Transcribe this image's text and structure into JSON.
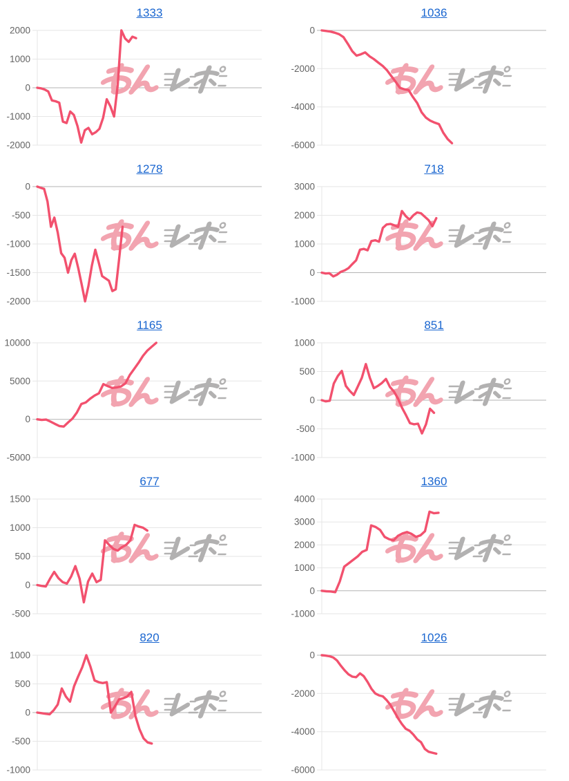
{
  "style": {
    "background": "#ffffff",
    "line_color": "#f2516e",
    "title_color": "#1a66d0",
    "tick_label_color": "#636363",
    "grid_color": "#e6e6e6",
    "zero_line_color": "#b3b3b3",
    "grid": true,
    "legend_position": "none"
  },
  "watermark": {
    "pink_text": "みん",
    "gray_text": "レポ",
    "pink_color": "#f2a4b0",
    "gray_color": "#b2b1b1"
  },
  "chart_data": [
    {
      "type": "line",
      "title": "1333",
      "xlabel": "",
      "ylabel": "",
      "ticks": [
        2000,
        1000,
        0,
        -1000,
        -2000
      ],
      "ylim": [
        -2000,
        2000
      ],
      "x_span": 0.44,
      "values": [
        0,
        -20,
        -60,
        -130,
        -440,
        -470,
        -520,
        -1180,
        -1230,
        -830,
        -950,
        -1340,
        -1910,
        -1480,
        -1400,
        -1620,
        -1550,
        -1430,
        -1050,
        -400,
        -650,
        -1000,
        100,
        2000,
        1720,
        1600,
        1780,
        1730
      ]
    },
    {
      "type": "line",
      "title": "1036",
      "xlabel": "",
      "ylabel": "",
      "ticks": [
        0,
        -2000,
        -4000,
        -6000
      ],
      "ylim": [
        -6000,
        0
      ],
      "x_span": 0.58,
      "values": [
        0,
        -30,
        -60,
        -120,
        -200,
        -350,
        -700,
        -1080,
        -1320,
        -1250,
        -1150,
        -1350,
        -1500,
        -1680,
        -1850,
        -2080,
        -2380,
        -2680,
        -3000,
        -3080,
        -3120,
        -3480,
        -3800,
        -4280,
        -4560,
        -4720,
        -4820,
        -4900,
        -5350,
        -5680,
        -5900
      ]
    },
    {
      "type": "line",
      "title": "1278",
      "xlabel": "",
      "ylabel": "",
      "ticks": [
        0,
        -500,
        -1000,
        -1500,
        -2000
      ],
      "ylim": [
        -2000,
        0
      ],
      "x_span": 0.38,
      "values": [
        0,
        -20,
        -40,
        -260,
        -700,
        -540,
        -800,
        -1160,
        -1240,
        -1500,
        -1280,
        -1170,
        -1420,
        -1700,
        -2000,
        -1730,
        -1380,
        -1100,
        -1320,
        -1560,
        -1600,
        -1640,
        -1820,
        -1790,
        -1250,
        -700
      ]
    },
    {
      "type": "line",
      "title": "718",
      "xlabel": "",
      "ylabel": "",
      "ticks": [
        3000,
        2000,
        1000,
        0,
        -1000
      ],
      "ylim": [
        -1000,
        3000
      ],
      "x_span": 0.51,
      "values": [
        0,
        -30,
        -20,
        -130,
        -70,
        30,
        80,
        160,
        300,
        430,
        800,
        830,
        780,
        1100,
        1130,
        1080,
        1560,
        1680,
        1700,
        1650,
        1600,
        2150,
        1970,
        1850,
        2000,
        2100,
        2070,
        1950,
        1830,
        1620,
        1900
      ]
    },
    {
      "type": "line",
      "title": "1165",
      "xlabel": "",
      "ylabel": "",
      "ticks": [
        10000,
        5000,
        0,
        -5000
      ],
      "ylim": [
        -5000,
        10000
      ],
      "x_span": 0.53,
      "values": [
        0,
        -80,
        -40,
        -300,
        -600,
        -880,
        -950,
        -400,
        100,
        900,
        2000,
        2200,
        2700,
        3100,
        3400,
        4600,
        4330,
        4100,
        4160,
        4300,
        4700,
        5800,
        6600,
        7400,
        8300,
        9000,
        9500,
        10000
      ]
    },
    {
      "type": "line",
      "title": "851",
      "xlabel": "",
      "ylabel": "",
      "ticks": [
        1000,
        500,
        0,
        -500,
        -1000
      ],
      "ylim": [
        -1000,
        1000
      ],
      "x_span": 0.5,
      "values": [
        0,
        -20,
        -10,
        290,
        420,
        510,
        250,
        160,
        90,
        240,
        390,
        630,
        390,
        210,
        250,
        300,
        370,
        230,
        150,
        30,
        -130,
        -260,
        -400,
        -420,
        -410,
        -580,
        -420,
        -150,
        -220
      ]
    },
    {
      "type": "line",
      "title": "677",
      "xlabel": "",
      "ylabel": "",
      "ticks": [
        1500,
        1000,
        500,
        0,
        -500
      ],
      "ylim": [
        -500,
        1500
      ],
      "x_span": 0.49,
      "values": [
        0,
        -15,
        -25,
        110,
        230,
        120,
        50,
        25,
        150,
        330,
        110,
        -300,
        60,
        200,
        50,
        90,
        780,
        700,
        630,
        600,
        660,
        700,
        780,
        1050,
        1020,
        1000,
        950
      ]
    },
    {
      "type": "line",
      "title": "1360",
      "xlabel": "",
      "ylabel": "",
      "ticks": [
        4000,
        3000,
        2000,
        1000,
        0,
        -1000
      ],
      "ylim": [
        -1000,
        4000
      ],
      "x_span": 0.52,
      "values": [
        0,
        -20,
        -30,
        -60,
        400,
        1050,
        1200,
        1350,
        1500,
        1700,
        1780,
        2850,
        2780,
        2650,
        2350,
        2250,
        2200,
        2400,
        2500,
        2560,
        2480,
        2350,
        2420,
        2600,
        3450,
        3380,
        3400
      ]
    },
    {
      "type": "line",
      "title": "820",
      "xlabel": "",
      "ylabel": "",
      "ticks": [
        1000,
        500,
        0,
        -500,
        -1000
      ],
      "ylim": [
        -1000,
        1000
      ],
      "x_span": 0.51,
      "values": [
        0,
        -10,
        -20,
        -30,
        40,
        140,
        420,
        280,
        190,
        460,
        630,
        790,
        1000,
        800,
        560,
        530,
        515,
        530,
        0,
        110,
        230,
        250,
        280,
        360,
        -60,
        -290,
        -450,
        -520,
        -540
      ]
    },
    {
      "type": "line",
      "title": "1026",
      "xlabel": "",
      "ylabel": "",
      "ticks": [
        0,
        -2000,
        -4000,
        -6000
      ],
      "ylim": [
        -6000,
        0
      ],
      "x_span": 0.51,
      "values": [
        0,
        -20,
        -50,
        -120,
        -280,
        -550,
        -800,
        -1000,
        -1120,
        -1150,
        -950,
        -1100,
        -1400,
        -1750,
        -2000,
        -2100,
        -2150,
        -2350,
        -2600,
        -2950,
        -3300,
        -3600,
        -3850,
        -3950,
        -4150,
        -4400,
        -4550,
        -4900,
        -5050,
        -5100,
        -5150
      ]
    }
  ]
}
